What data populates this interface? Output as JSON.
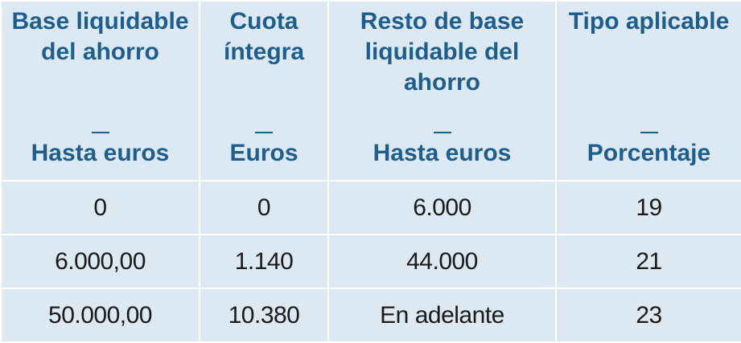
{
  "table": {
    "header": [
      {
        "title": "Base liquidable del ahorro",
        "unit": "Hasta euros"
      },
      {
        "title": "Cuota íntegra",
        "unit": "Euros"
      },
      {
        "title": "Resto de base liquidable del ahorro",
        "unit": "Hasta euros"
      },
      {
        "title": "Tipo aplicable",
        "unit": "Porcentaje"
      }
    ],
    "rows": [
      [
        "0",
        "0",
        "6.000",
        "19"
      ],
      [
        "6.000,00",
        "1.140",
        "44.000",
        "21"
      ],
      [
        "50.000,00",
        "10.380",
        "En adelante",
        "23"
      ]
    ]
  }
}
